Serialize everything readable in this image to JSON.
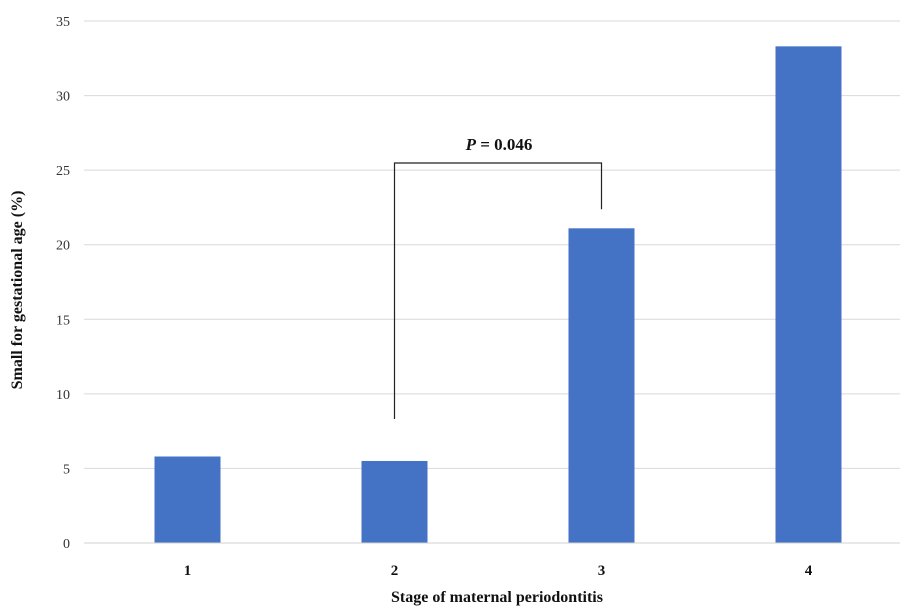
{
  "chart_data": {
    "type": "bar",
    "categories": [
      "1",
      "2",
      "3",
      "4"
    ],
    "values": [
      5.8,
      5.5,
      21.1,
      33.3
    ],
    "xlabel": "Stage of maternal periodontitis",
    "ylabel": "Small for gestational age (%)",
    "ylim": [
      0,
      35
    ],
    "yticks": [
      0,
      5,
      10,
      15,
      20,
      25,
      30,
      35
    ],
    "grid": true,
    "legend": "none",
    "bar_color": "#4472C4",
    "annotation": {
      "p_symbol": "P",
      "p_text": " = 0.046",
      "from_category": "2",
      "to_category": "3"
    }
  }
}
